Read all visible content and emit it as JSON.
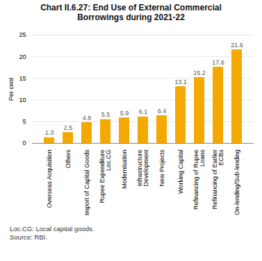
{
  "chart_data": {
    "type": "bar",
    "title": "Chart II.6.27: End Use of External Commercial\nBorrowings during 2021-22",
    "categories": [
      "Overseas Acquisition",
      "Others",
      "Import of Capital Goods",
      "Rupee Expenditure\nLoc.CG",
      "Modernisation",
      "Infrastructure\nDevelopment",
      "New Projects",
      "Working Capital",
      "Refinancing of Rupee\nLoans",
      "Refinancing of Earlier\nECBs",
      "On-lending/Sub-lending"
    ],
    "values": [
      1.3,
      2.5,
      4.8,
      5.5,
      5.9,
      6.1,
      6.4,
      13.1,
      15.2,
      17.6,
      21.6
    ],
    "color": "#F5A800",
    "ylabel": "Per cent",
    "ylim": [
      0,
      25
    ],
    "yticks": [
      0,
      5,
      10,
      15,
      20,
      25
    ],
    "grid": true,
    "data_labels": true,
    "annotations": [
      "Loc.CG: Local capital goods.",
      "Source: RBI."
    ]
  }
}
